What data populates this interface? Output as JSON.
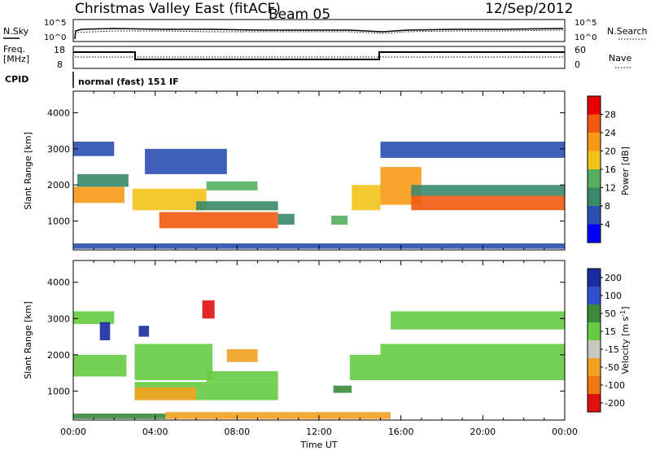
{
  "header": {
    "site": "Christmas Valley East (fitACF)",
    "beam": "Beam 05",
    "date": "12/Sep/2012"
  },
  "top_panels": {
    "nsky_label": "N.Sky",
    "nsky_ticks": [
      "10^5",
      "10^0"
    ],
    "nsearch_label": "N.Search",
    "nsearch_ticks": [
      "10^5",
      "10^0"
    ],
    "freq_label": "Freq.",
    "freq_unit": "[MHz]",
    "freq_ticks": [
      "18",
      "8"
    ],
    "nave_label": "Nave",
    "nave_ticks": [
      "60",
      "0"
    ],
    "cpid_label": "CPID",
    "cpid_value": "normal (fast) 151 IF"
  },
  "chart_data": [
    {
      "type": "heatmap",
      "name": "power",
      "ylabel": "Slant Range [km]",
      "xlabel": "",
      "x_ticks": [
        "00:00",
        "04:00",
        "08:00",
        "12:00",
        "16:00",
        "20:00",
        "00:00"
      ],
      "y_ticks": [
        1000,
        2000,
        3000,
        4000
      ],
      "ylim": [
        200,
        4600
      ],
      "xlim_hours": [
        0,
        24
      ],
      "colorbar_label": "Power [dB]",
      "colorbar_ticks": [
        4,
        8,
        12,
        16,
        20,
        24,
        28
      ],
      "colors": [
        "#0000ff",
        "#2a4fb0",
        "#3a8a6a",
        "#55b060",
        "#f2c21a",
        "#f79a18",
        "#f05a10",
        "#e60000"
      ],
      "bands": [
        {
          "t0": 0.0,
          "t1": 2.5,
          "r0": 1500,
          "r1": 1950,
          "v": 22
        },
        {
          "t0": 0.2,
          "t1": 2.7,
          "r0": 1950,
          "r1": 2300,
          "v": 10
        },
        {
          "t0": 0.0,
          "t1": 2.0,
          "r0": 2800,
          "r1": 3200,
          "v": 6
        },
        {
          "t0": 2.9,
          "t1": 6.5,
          "r0": 1300,
          "r1": 1900,
          "v": 16
        },
        {
          "t0": 3.5,
          "t1": 7.5,
          "r0": 2300,
          "r1": 3000,
          "v": 6
        },
        {
          "t0": 4.2,
          "t1": 10.0,
          "r0": 800,
          "r1": 1250,
          "v": 24
        },
        {
          "t0": 6.5,
          "t1": 9.0,
          "r0": 1850,
          "r1": 2100,
          "v": 14
        },
        {
          "t0": 6.0,
          "t1": 10.0,
          "r0": 1300,
          "r1": 1550,
          "v": 10
        },
        {
          "t0": 10.0,
          "t1": 10.8,
          "r0": 900,
          "r1": 1200,
          "v": 10
        },
        {
          "t0": 12.6,
          "t1": 13.4,
          "r0": 900,
          "r1": 1150,
          "v": 14
        },
        {
          "t0": 13.6,
          "t1": 15.0,
          "r0": 1300,
          "r1": 2000,
          "v": 16
        },
        {
          "t0": 15.0,
          "t1": 17.0,
          "r0": 1450,
          "r1": 2500,
          "v": 22
        },
        {
          "t0": 16.5,
          "t1": 24.0,
          "r0": 1300,
          "r1": 1700,
          "v": 24
        },
        {
          "t0": 16.5,
          "t1": 24.0,
          "r0": 1700,
          "r1": 2000,
          "v": 10
        },
        {
          "t0": 15.0,
          "t1": 24.0,
          "r0": 2750,
          "r1": 3200,
          "v": 5
        },
        {
          "t0": 0.0,
          "t1": 24.0,
          "r0": 230,
          "r1": 380,
          "v": 6
        }
      ]
    },
    {
      "type": "heatmap",
      "name": "velocity",
      "ylabel": "Slant Range [km]",
      "xlabel": "Time UT",
      "x_ticks": [
        "00:00",
        "04:00",
        "08:00",
        "12:00",
        "16:00",
        "20:00",
        "00:00"
      ],
      "y_ticks": [
        1000,
        2000,
        3000,
        4000
      ],
      "ylim": [
        200,
        4600
      ],
      "xlim_hours": [
        0,
        24
      ],
      "colorbar_label": "Velocity [m s^-1]",
      "colorbar_ticks": [
        "200",
        "100",
        "50",
        "15",
        "-15",
        "-50",
        "-100",
        "-200"
      ],
      "colors": [
        "#1a2aa0",
        "#3050d0",
        "#3a8a3a",
        "#66cc44",
        "#c8c8c0",
        "#f2a020",
        "#f07810",
        "#e01010"
      ],
      "bands": [
        {
          "t0": 0.0,
          "t1": 2.6,
          "r0": 1400,
          "r1": 2000,
          "v": "15"
        },
        {
          "t0": 0.0,
          "t1": 2.0,
          "r0": 2850,
          "r1": 3200,
          "v": "15"
        },
        {
          "t0": 1.3,
          "t1": 1.8,
          "r0": 2400,
          "r1": 2900,
          "v": "200"
        },
        {
          "t0": 3.0,
          "t1": 6.8,
          "r0": 1300,
          "r1": 2300,
          "v": "15"
        },
        {
          "t0": 3.2,
          "t1": 3.7,
          "r0": 2500,
          "r1": 2800,
          "v": "200"
        },
        {
          "t0": 6.3,
          "t1": 6.9,
          "r0": 3000,
          "r1": 3500,
          "v": "-200"
        },
        {
          "t0": 3.0,
          "t1": 10.0,
          "r0": 750,
          "r1": 1250,
          "v": "15"
        },
        {
          "t0": 3.0,
          "t1": 6.0,
          "r0": 750,
          "r1": 1100,
          "v": "-50"
        },
        {
          "t0": 7.5,
          "t1": 9.0,
          "r0": 1800,
          "r1": 2150,
          "v": "-50"
        },
        {
          "t0": 6.5,
          "t1": 10.0,
          "r0": 1250,
          "r1": 1550,
          "v": "15"
        },
        {
          "t0": 12.7,
          "t1": 13.6,
          "r0": 950,
          "r1": 1150,
          "v": "50"
        },
        {
          "t0": 13.5,
          "t1": 15.0,
          "r0": 1300,
          "r1": 2000,
          "v": "15"
        },
        {
          "t0": 15.0,
          "t1": 24.0,
          "r0": 1300,
          "r1": 2300,
          "v": "15"
        },
        {
          "t0": 15.5,
          "t1": 24.0,
          "r0": 2700,
          "r1": 3200,
          "v": "15"
        },
        {
          "t0": 4.5,
          "t1": 15.5,
          "r0": 230,
          "r1": 420,
          "v": "-50"
        },
        {
          "t0": 0.0,
          "t1": 4.5,
          "r0": 230,
          "r1": 380,
          "v": "50"
        }
      ]
    }
  ]
}
